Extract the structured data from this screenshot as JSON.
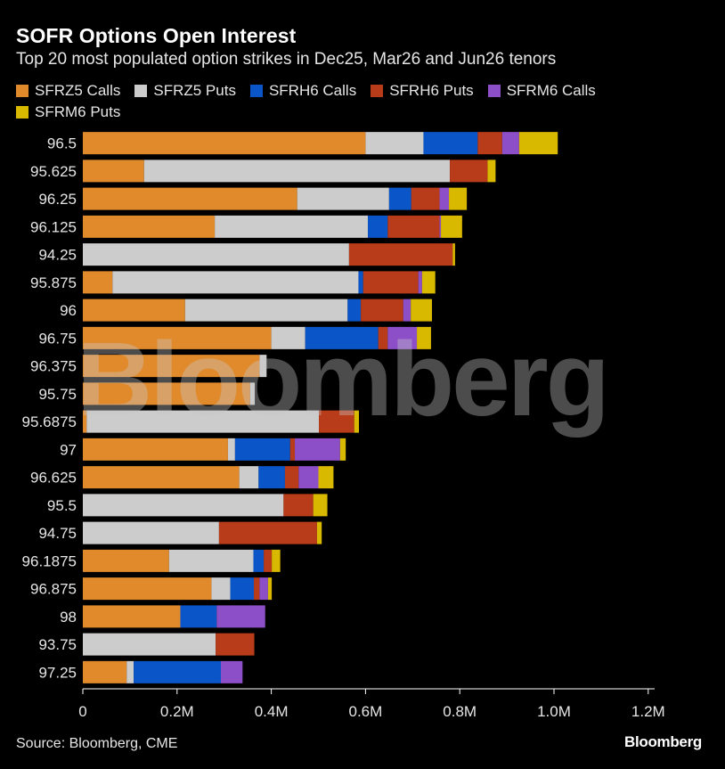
{
  "title": "SOFR Options Open Interest",
  "subtitle": "Top 20 most populated option strikes in Dec25, Mar26 and Jun26 tenors",
  "source": "Source: Bloomberg, CME",
  "brand": "Bloomberg",
  "watermark": "Bloomberg",
  "colors": {
    "background": "#000000",
    "axis": "#ffffff",
    "tick_text": "#e6e6e6"
  },
  "chart_data": {
    "type": "bar",
    "orientation": "horizontal",
    "stacked": true,
    "categories": [
      "96.5",
      "95.625",
      "96.25",
      "96.125",
      "94.25",
      "95.875",
      "96",
      "96.75",
      "96.375",
      "95.75",
      "95.6875",
      "97",
      "96.625",
      "95.5",
      "94.75",
      "96.1875",
      "96.875",
      "98",
      "93.75",
      "97.25"
    ],
    "series": [
      {
        "name": "SFRZ5 Calls",
        "color": "#e08a2c",
        "values": [
          600000,
          130000,
          455000,
          280000,
          0,
          63000,
          217000,
          400000,
          375000,
          355000,
          8000,
          308000,
          332000,
          0,
          0,
          183000,
          273000,
          207000,
          0,
          93000
        ]
      },
      {
        "name": "SFRZ5 Puts",
        "color": "#cccccc",
        "values": [
          123000,
          649000,
          195000,
          325000,
          565000,
          522000,
          345000,
          72000,
          15000,
          10000,
          493000,
          15000,
          41000,
          426000,
          289000,
          179000,
          40000,
          0,
          282000,
          15000
        ]
      },
      {
        "name": "SFRH6 Calls",
        "color": "#0a55c8",
        "values": [
          115000,
          0,
          47000,
          42000,
          0,
          10000,
          28000,
          155000,
          0,
          0,
          0,
          117000,
          56000,
          0,
          0,
          22000,
          50000,
          77000,
          0,
          185000
        ]
      },
      {
        "name": "SFRH6 Puts",
        "color": "#b83b1a",
        "values": [
          52000,
          80000,
          60000,
          110000,
          220000,
          117000,
          90000,
          20000,
          0,
          0,
          75000,
          10000,
          29000,
          63000,
          208000,
          17000,
          12000,
          0,
          82000,
          0
        ]
      },
      {
        "name": "SFRM6 Calls",
        "color": "#8c4fc8",
        "values": [
          36000,
          0,
          20000,
          3000,
          0,
          8000,
          16000,
          62000,
          0,
          0,
          0,
          96000,
          42000,
          0,
          0,
          0,
          18000,
          103000,
          0,
          46000
        ]
      },
      {
        "name": "SFRM6 Puts",
        "color": "#d9b800",
        "values": [
          82000,
          17000,
          38000,
          45000,
          5000,
          28000,
          45000,
          30000,
          0,
          0,
          10000,
          12000,
          32000,
          30000,
          10000,
          18000,
          8000,
          0,
          0,
          0
        ]
      }
    ],
    "xlim": [
      0,
      1200000
    ],
    "xticks": [
      {
        "value": 0,
        "label": "0"
      },
      {
        "value": 200000,
        "label": "0.2M"
      },
      {
        "value": 400000,
        "label": "0.4M"
      },
      {
        "value": 600000,
        "label": "0.6M"
      },
      {
        "value": 800000,
        "label": "0.8M"
      },
      {
        "value": 1000000,
        "label": "1.0M"
      },
      {
        "value": 1200000,
        "label": "1.2M"
      }
    ],
    "grid": false,
    "legend_position": "top"
  }
}
